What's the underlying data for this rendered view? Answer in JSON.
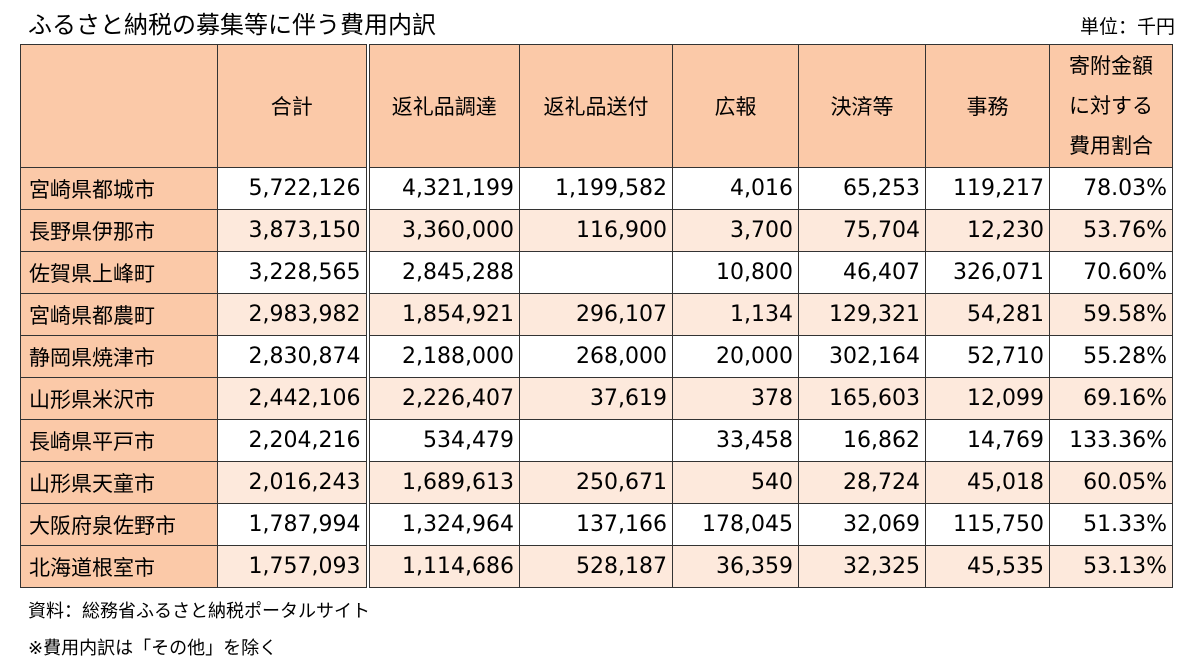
{
  "title": "ふるさと納税の募集等に伴う費用内訳",
  "unit": "単位：千円",
  "table": {
    "headers": {
      "municipality": "",
      "total": "合計",
      "gift_procurement": "返礼品調達",
      "gift_shipping": "返礼品送付",
      "advertising": "広報",
      "payment": "決済等",
      "admin": "事務",
      "ratio_line1": "寄附金額",
      "ratio_line2": "に対する",
      "ratio_line3": "費用割合"
    },
    "rows": [
      {
        "name": "宮崎県都城市",
        "total": "5,722,126",
        "gift_procurement": "4,321,199",
        "gift_shipping": "1,199,582",
        "advertising": "4,016",
        "payment": "65,253",
        "admin": "119,217",
        "ratio": "78.03%"
      },
      {
        "name": "長野県伊那市",
        "total": "3,873,150",
        "gift_procurement": "3,360,000",
        "gift_shipping": "116,900",
        "advertising": "3,700",
        "payment": "75,704",
        "admin": "12,230",
        "ratio": "53.76%"
      },
      {
        "name": "佐賀県上峰町",
        "total": "3,228,565",
        "gift_procurement": "2,845,288",
        "gift_shipping": "",
        "advertising": "10,800",
        "payment": "46,407",
        "admin": "326,071",
        "ratio": "70.60%"
      },
      {
        "name": "宮崎県都農町",
        "total": "2,983,982",
        "gift_procurement": "1,854,921",
        "gift_shipping": "296,107",
        "advertising": "1,134",
        "payment": "129,321",
        "admin": "54,281",
        "ratio": "59.58%"
      },
      {
        "name": "静岡県焼津市",
        "total": "2,830,874",
        "gift_procurement": "2,188,000",
        "gift_shipping": "268,000",
        "advertising": "20,000",
        "payment": "302,164",
        "admin": "52,710",
        "ratio": "55.28%"
      },
      {
        "name": "山形県米沢市",
        "total": "2,442,106",
        "gift_procurement": "2,226,407",
        "gift_shipping": "37,619",
        "advertising": "378",
        "payment": "165,603",
        "admin": "12,099",
        "ratio": "69.16%"
      },
      {
        "name": "長崎県平戸市",
        "total": "2,204,216",
        "gift_procurement": "534,479",
        "gift_shipping": "",
        "advertising": "33,458",
        "payment": "16,862",
        "admin": "14,769",
        "ratio": "133.36%"
      },
      {
        "name": "山形県天童市",
        "total": "2,016,243",
        "gift_procurement": "1,689,613",
        "gift_shipping": "250,671",
        "advertising": "540",
        "payment": "28,724",
        "admin": "45,018",
        "ratio": "60.05%"
      },
      {
        "name": "大阪府泉佐野市",
        "total": "1,787,994",
        "gift_procurement": "1,324,964",
        "gift_shipping": "137,166",
        "advertising": "178,045",
        "payment": "32,069",
        "admin": "115,750",
        "ratio": "51.33%"
      },
      {
        "name": "北海道根室市",
        "total": "1,757,093",
        "gift_procurement": "1,114,686",
        "gift_shipping": "528,187",
        "advertising": "36,359",
        "payment": "32,325",
        "admin": "45,535",
        "ratio": "53.13%"
      }
    ]
  },
  "notes": {
    "source": "資料：総務省ふるさと納税ポータルサイト",
    "exclusion": "※費用内訳は「その他」を除く"
  },
  "colors": {
    "header_fill": "#fbc9a8",
    "stripe_fill": "#fde9dc",
    "plain_fill": "#ffffff",
    "border": "#333333"
  }
}
